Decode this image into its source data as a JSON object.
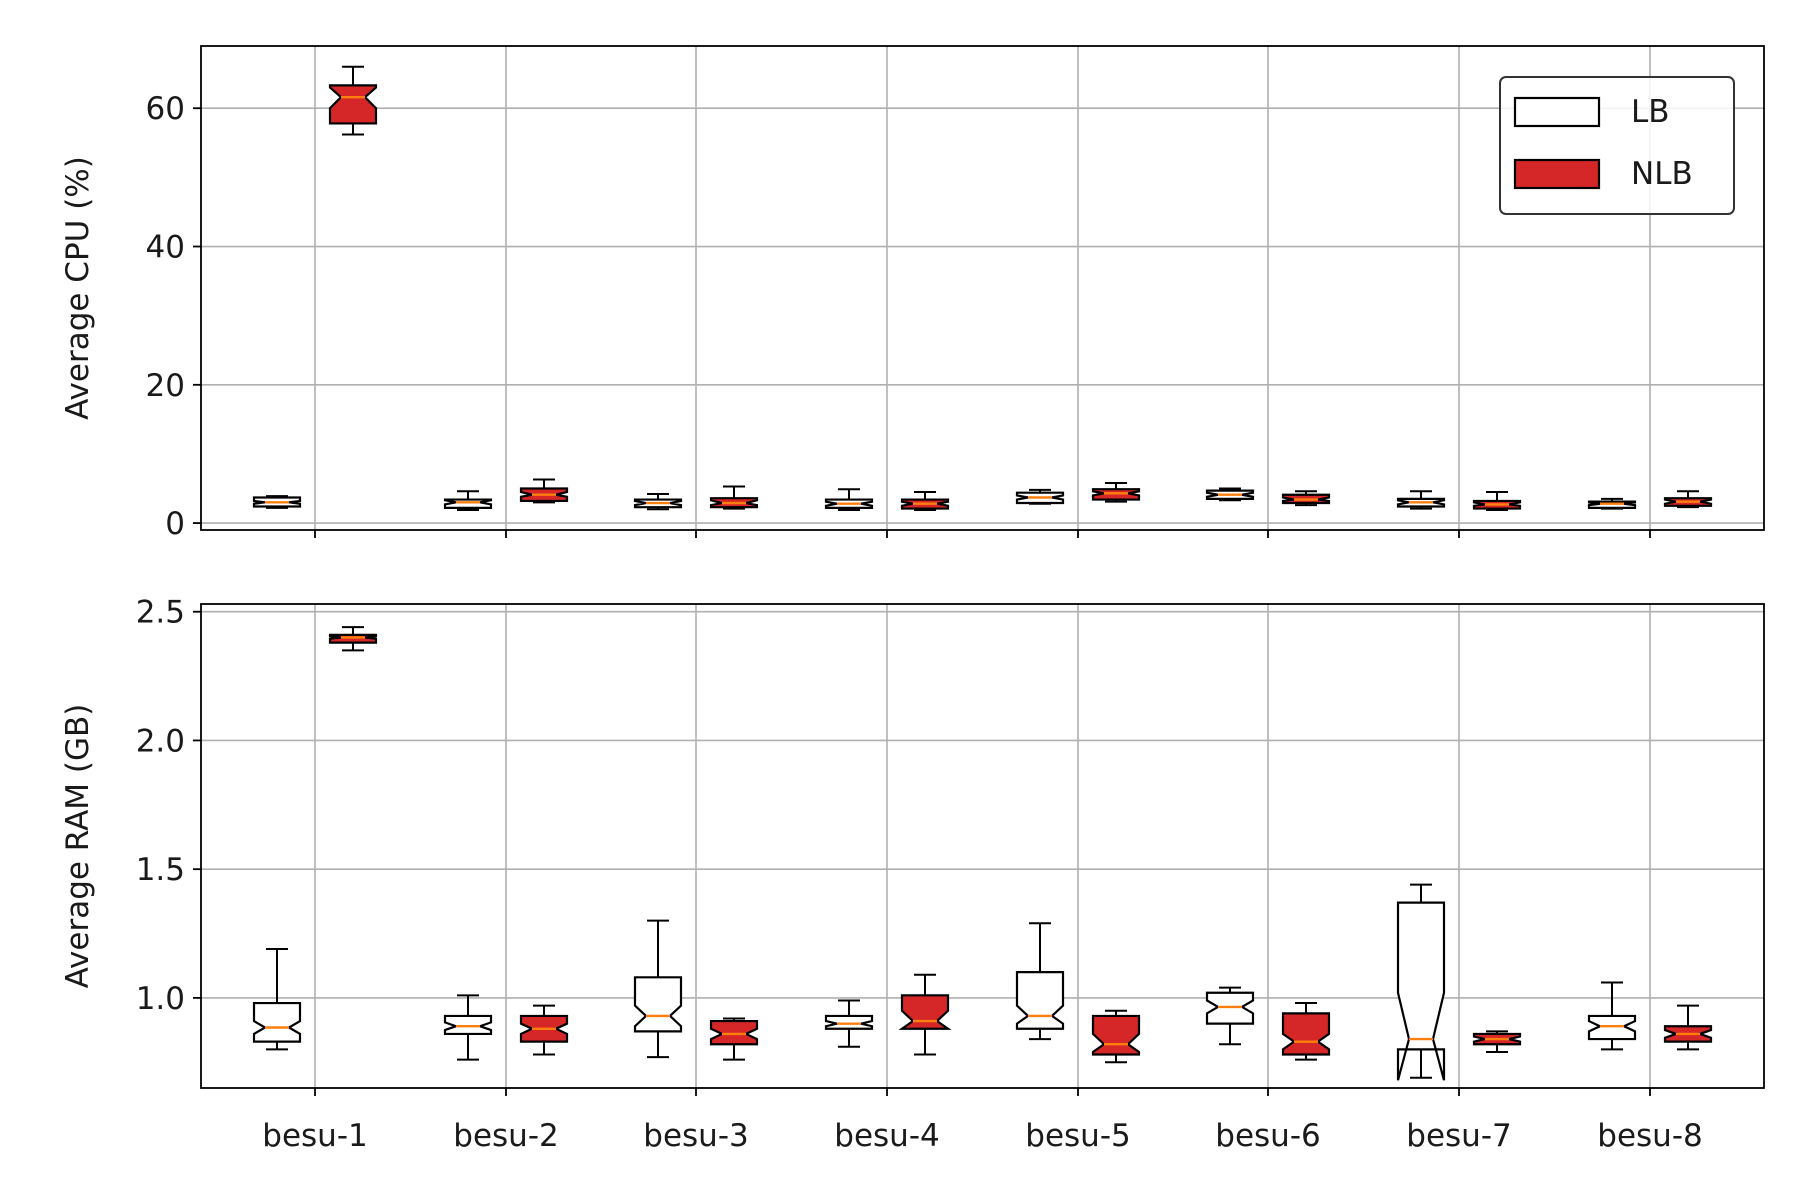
{
  "colors": {
    "LB": "#ffffff",
    "NLB": "#d62728",
    "median": "#ff7f0e",
    "grid": "#b0b0b0"
  },
  "chart_data": [
    {
      "type": "boxplot",
      "notched": true,
      "ylabel": "Average CPU (%)",
      "ylim": [
        -1,
        69
      ],
      "yticks": [
        0,
        20,
        40,
        60
      ],
      "categories": [
        "besu-1",
        "besu-2",
        "besu-3",
        "besu-4",
        "besu-5",
        "besu-6",
        "besu-7",
        "besu-8"
      ],
      "grid": true,
      "legend": {
        "placement": "top-right",
        "entries": [
          "LB",
          "NLB"
        ]
      },
      "series": [
        {
          "name": "LB",
          "boxes": [
            {
              "whislo": 2.2,
              "q1": 2.4,
              "med": 3.0,
              "q3": 3.7,
              "whishi": 3.9,
              "cilo": 2.8,
              "cihi": 3.2
            },
            {
              "whislo": 1.9,
              "q1": 2.2,
              "med": 3.0,
              "q3": 3.4,
              "whishi": 4.6,
              "cilo": 2.7,
              "cihi": 3.3
            },
            {
              "whislo": 2.0,
              "q1": 2.3,
              "med": 2.9,
              "q3": 3.4,
              "whishi": 4.2,
              "cilo": 2.6,
              "cihi": 3.2
            },
            {
              "whislo": 1.9,
              "q1": 2.2,
              "med": 2.8,
              "q3": 3.4,
              "whishi": 4.9,
              "cilo": 2.5,
              "cihi": 3.1
            },
            {
              "whislo": 2.8,
              "q1": 2.9,
              "med": 3.7,
              "q3": 4.4,
              "whishi": 4.8,
              "cilo": 3.4,
              "cihi": 4.0
            },
            {
              "whislo": 3.3,
              "q1": 3.5,
              "med": 4.1,
              "q3": 4.7,
              "whishi": 5.0,
              "cilo": 3.8,
              "cihi": 4.4
            },
            {
              "whislo": 2.1,
              "q1": 2.4,
              "med": 3.0,
              "q3": 3.5,
              "whishi": 4.6,
              "cilo": 2.7,
              "cihi": 3.3
            },
            {
              "whislo": 2.1,
              "q1": 2.2,
              "med": 2.8,
              "q3": 3.1,
              "whishi": 3.5,
              "cilo": 2.6,
              "cihi": 3.0
            }
          ]
        },
        {
          "name": "NLB",
          "boxes": [
            {
              "whislo": 56.2,
              "q1": 57.8,
              "med": 61.6,
              "q3": 63.3,
              "whishi": 66.0,
              "cilo": 60.0,
              "cihi": 63.0
            },
            {
              "whislo": 3.0,
              "q1": 3.2,
              "med": 4.1,
              "q3": 5.0,
              "whishi": 6.3,
              "cilo": 3.8,
              "cihi": 4.5
            },
            {
              "whislo": 2.1,
              "q1": 2.3,
              "med": 2.9,
              "q3": 3.6,
              "whishi": 5.3,
              "cilo": 2.6,
              "cihi": 3.3
            },
            {
              "whislo": 1.9,
              "q1": 2.1,
              "med": 2.8,
              "q3": 3.4,
              "whishi": 4.5,
              "cilo": 2.5,
              "cihi": 3.1
            },
            {
              "whislo": 3.1,
              "q1": 3.4,
              "med": 4.3,
              "q3": 4.9,
              "whishi": 5.8,
              "cilo": 4.0,
              "cihi": 4.6
            },
            {
              "whislo": 2.6,
              "q1": 2.9,
              "med": 3.4,
              "q3": 4.1,
              "whishi": 4.6,
              "cilo": 3.2,
              "cihi": 3.7
            },
            {
              "whislo": 1.9,
              "q1": 2.1,
              "med": 2.7,
              "q3": 3.2,
              "whishi": 4.5,
              "cilo": 2.5,
              "cihi": 3.0
            },
            {
              "whislo": 2.3,
              "q1": 2.5,
              "med": 3.1,
              "q3": 3.6,
              "whishi": 4.6,
              "cilo": 2.8,
              "cihi": 3.4
            }
          ]
        }
      ]
    },
    {
      "type": "boxplot",
      "notched": true,
      "ylabel": "Average RAM (GB)",
      "ylim": [
        0.65,
        2.53
      ],
      "yticks": [
        1.0,
        1.5,
        2.0,
        2.5
      ],
      "ytick_labels": [
        "1.0",
        "1.5",
        "2.0",
        "2.5"
      ],
      "categories": [
        "besu-1",
        "besu-2",
        "besu-3",
        "besu-4",
        "besu-5",
        "besu-6",
        "besu-7",
        "besu-8"
      ],
      "grid": true,
      "series": [
        {
          "name": "LB",
          "boxes": [
            {
              "whislo": 0.8,
              "q1": 0.83,
              "med": 0.885,
              "q3": 0.98,
              "whishi": 1.19,
              "cilo": 0.86,
              "cihi": 0.91
            },
            {
              "whislo": 0.76,
              "q1": 0.86,
              "med": 0.89,
              "q3": 0.93,
              "whishi": 1.01,
              "cilo": 0.875,
              "cihi": 0.905
            },
            {
              "whislo": 0.77,
              "q1": 0.87,
              "med": 0.93,
              "q3": 1.08,
              "whishi": 1.3,
              "cilo": 0.89,
              "cihi": 0.97
            },
            {
              "whislo": 0.81,
              "q1": 0.88,
              "med": 0.9,
              "q3": 0.93,
              "whishi": 0.99,
              "cilo": 0.89,
              "cihi": 0.91
            },
            {
              "whislo": 0.84,
              "q1": 0.88,
              "med": 0.93,
              "q3": 1.1,
              "whishi": 1.29,
              "cilo": 0.9,
              "cihi": 0.97
            },
            {
              "whislo": 0.82,
              "q1": 0.9,
              "med": 0.965,
              "q3": 1.02,
              "whishi": 1.04,
              "cilo": 0.94,
              "cihi": 0.99
            },
            {
              "whislo": 0.69,
              "q1": 0.8,
              "med": 0.84,
              "q3": 1.37,
              "whishi": 1.44,
              "cilo": 0.68,
              "cihi": 1.02
            },
            {
              "whislo": 0.8,
              "q1": 0.84,
              "med": 0.89,
              "q3": 0.93,
              "whishi": 1.06,
              "cilo": 0.87,
              "cihi": 0.91
            }
          ]
        },
        {
          "name": "NLB",
          "boxes": [
            {
              "whislo": 2.35,
              "q1": 2.38,
              "med": 2.4,
              "q3": 2.41,
              "whishi": 2.44,
              "cilo": 2.395,
              "cihi": 2.405
            },
            {
              "whislo": 0.78,
              "q1": 0.83,
              "med": 0.88,
              "q3": 0.93,
              "whishi": 0.97,
              "cilo": 0.86,
              "cihi": 0.9
            },
            {
              "whislo": 0.76,
              "q1": 0.82,
              "med": 0.86,
              "q3": 0.91,
              "whishi": 0.92,
              "cilo": 0.84,
              "cihi": 0.88
            },
            {
              "whislo": 0.78,
              "q1": 0.88,
              "med": 0.91,
              "q3": 1.01,
              "whishi": 1.09,
              "cilo": 0.88,
              "cihi": 0.95
            },
            {
              "whislo": 0.75,
              "q1": 0.78,
              "med": 0.82,
              "q3": 0.93,
              "whishi": 0.95,
              "cilo": 0.79,
              "cihi": 0.86
            },
            {
              "whislo": 0.76,
              "q1": 0.78,
              "med": 0.83,
              "q3": 0.94,
              "whishi": 0.98,
              "cilo": 0.8,
              "cihi": 0.86
            },
            {
              "whislo": 0.79,
              "q1": 0.82,
              "med": 0.84,
              "q3": 0.86,
              "whishi": 0.87,
              "cilo": 0.83,
              "cihi": 0.85
            },
            {
              "whislo": 0.8,
              "q1": 0.83,
              "med": 0.86,
              "q3": 0.89,
              "whishi": 0.97,
              "cilo": 0.845,
              "cihi": 0.875
            }
          ]
        }
      ]
    }
  ]
}
